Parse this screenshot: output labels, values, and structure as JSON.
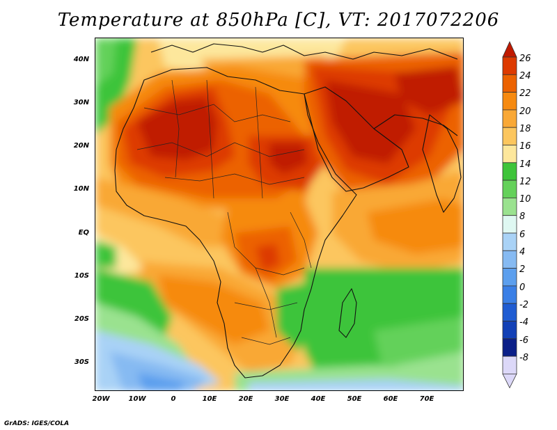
{
  "title": "Temperature at 850hPa [C], VT: 2017072206",
  "footer": "GrADS: IGES/COLA",
  "lat_labels": [
    "40N",
    "30N",
    "20N",
    "10N",
    "EQ",
    "10S",
    "20S",
    "30S"
  ],
  "lon_labels": [
    "20W",
    "10W",
    "0",
    "10E",
    "20E",
    "30E",
    "40E",
    "50E",
    "60E",
    "70E"
  ],
  "colorbar": {
    "labels": [
      "26",
      "24",
      "22",
      "20",
      "18",
      "16",
      "14",
      "12",
      "10",
      "8",
      "6",
      "4",
      "2",
      "0",
      "-2",
      "-4",
      "-6",
      "-8"
    ],
    "colors": [
      "#c01a00",
      "#dd3a00",
      "#ec6200",
      "#f68a10",
      "#f9a836",
      "#fcc65e",
      "#fde79c",
      "#3ec43a",
      "#64d15a",
      "#9ae28f",
      "#dff8f2",
      "#a9d2f6",
      "#86baf2",
      "#5c9fee",
      "#3a7fe6",
      "#1f5cd2",
      "#1240b6",
      "#0b1f88",
      "#dcd8f8"
    ],
    "units": "C"
  }
}
